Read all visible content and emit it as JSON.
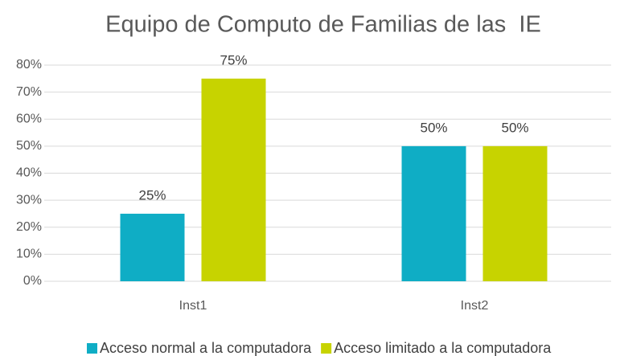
{
  "chart_data": {
    "type": "bar",
    "title": "Equipo de Computo de Familias de las  IE",
    "categories": [
      "Inst1",
      "Inst2"
    ],
    "series": [
      {
        "name": "Acceso normal a la computadora",
        "color": "#0fadc5",
        "values": [
          25,
          50
        ],
        "value_labels": [
          "25%",
          "50%"
        ]
      },
      {
        "name": "Acceso limitado a la computadora",
        "color": "#c7d300",
        "values": [
          75,
          50
        ],
        "value_labels": [
          "75%",
          "50%"
        ]
      }
    ],
    "ylim": [
      0,
      80
    ],
    "yticks": [
      {
        "value": 0,
        "label": "0%"
      },
      {
        "value": 10,
        "label": "10%"
      },
      {
        "value": 20,
        "label": "20%"
      },
      {
        "value": 30,
        "label": "30%"
      },
      {
        "value": 40,
        "label": "40%"
      },
      {
        "value": 50,
        "label": "50%"
      },
      {
        "value": 60,
        "label": "60%"
      },
      {
        "value": 70,
        "label": "70%"
      },
      {
        "value": 80,
        "label": "80%"
      }
    ],
    "grid": true,
    "legend": "bottom"
  }
}
